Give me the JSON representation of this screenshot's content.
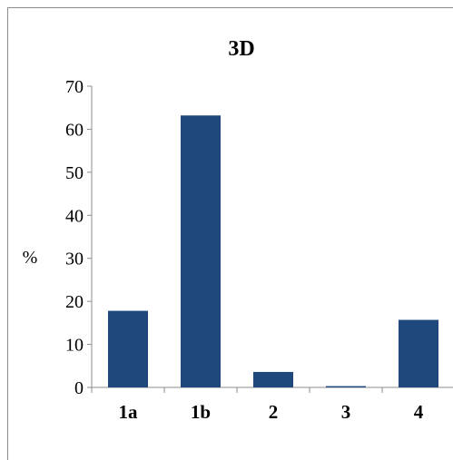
{
  "chart_data": {
    "type": "bar",
    "title": "3D",
    "ylabel": "%",
    "xlabel": "",
    "categories": [
      "1a",
      "1b",
      "2",
      "3",
      "4"
    ],
    "values": [
      17.8,
      63.2,
      3.6,
      0.3,
      15.7
    ],
    "ylim": [
      0,
      70
    ],
    "yticks": [
      0,
      10,
      20,
      30,
      40,
      50,
      60,
      70
    ],
    "bar_color": "#1f497d",
    "grid": false,
    "legend": "none"
  }
}
